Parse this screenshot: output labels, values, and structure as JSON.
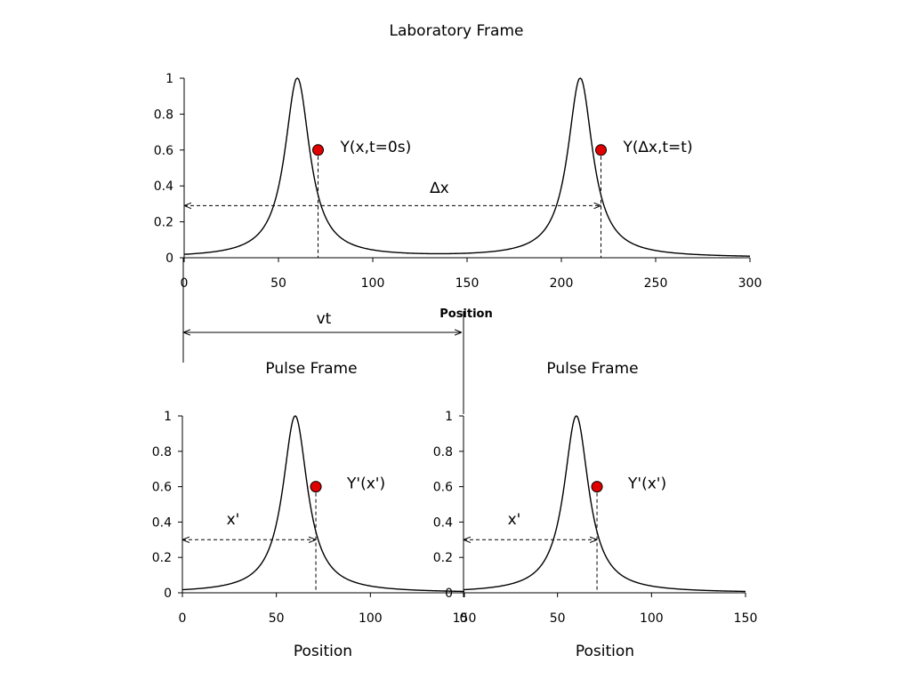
{
  "chart_data": [
    {
      "type": "line",
      "title": "Laboratory Frame",
      "xlabel": "Position",
      "ylabel": "",
      "xlim": [
        0,
        300
      ],
      "ylim": [
        0,
        1
      ],
      "xticks": [
        "0",
        "50",
        "100",
        "150",
        "200",
        "250",
        "300"
      ],
      "yticks": [
        "0",
        "0.2",
        "0.4",
        "0.6",
        "0.8",
        "1"
      ],
      "grid": false,
      "pulse_centers": [
        60,
        210
      ],
      "pulse_width": 16,
      "points": [
        {
          "x": 71,
          "y": 0.6,
          "label": "Y(x,t=0s)"
        },
        {
          "x": 221,
          "y": 0.6,
          "label": "Y(∆x,t=t)"
        }
      ],
      "annotations": {
        "delta_x": "∆x",
        "vt": "vt"
      }
    },
    {
      "type": "line",
      "title": "Pulse Frame",
      "xlabel": "Position",
      "ylabel": "",
      "xlim": [
        0,
        150
      ],
      "ylim": [
        0,
        1
      ],
      "xticks": [
        "0",
        "50",
        "100",
        "150"
      ],
      "yticks": [
        "0",
        "0.2",
        "0.4",
        "0.6",
        "0.8",
        "1"
      ],
      "grid": false,
      "pulse_centers": [
        60
      ],
      "pulse_width": 16,
      "points": [
        {
          "x": 71,
          "y": 0.6,
          "label": "Y'(x')"
        }
      ],
      "annotations": {
        "x_prime": "x'"
      }
    },
    {
      "type": "line",
      "title": "Pulse Frame",
      "xlabel": "Position",
      "ylabel": "",
      "xlim": [
        0,
        150
      ],
      "ylim": [
        0,
        1
      ],
      "xticks": [
        "0",
        "50",
        "100",
        "150"
      ],
      "yticks": [
        "0",
        "0.2",
        "0.4",
        "0.6",
        "0.8",
        "1"
      ],
      "grid": false,
      "pulse_centers": [
        60
      ],
      "pulse_width": 16,
      "points": [
        {
          "x": 71,
          "y": 0.6,
          "label": "Y'(x')"
        }
      ],
      "annotations": {
        "x_prime": "x'"
      }
    }
  ],
  "colors": {
    "curve": "#000000",
    "marker": "#e00000"
  }
}
